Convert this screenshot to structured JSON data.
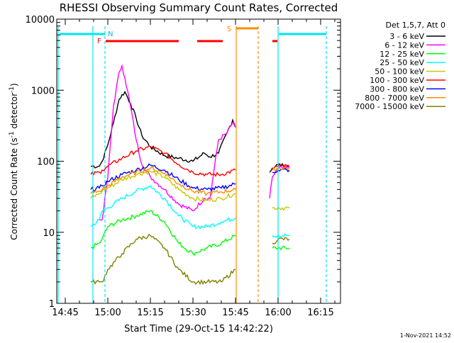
{
  "footer": {
    "timestamp": "1-Nov-2021 14:52"
  },
  "chart_data": {
    "type": "line",
    "title": "RHESSI Observing Summary Count Rates, Corrected",
    "xlabel": "Start Time (29-Oct-15 14:42:22)",
    "ylabel": "Corrected Count Rate (s⁻¹ detector⁻¹)",
    "ylabel_main": "Corrected Count Rate (s",
    "ylabel_sup1": "-1",
    "ylabel_mid": " detector",
    "ylabel_sup2": "-1",
    "ylabel_end": ")",
    "y_scale": "log",
    "ylim": [
      1,
      10000
    ],
    "y_ticks": [
      1,
      10,
      100,
      1000,
      10000
    ],
    "y_tick_labels": [
      "1",
      "10",
      "100",
      "1000",
      "10000"
    ],
    "xlim": [
      "14:42",
      "16:22"
    ],
    "x_ticks": [
      "14:45",
      "15:00",
      "15:15",
      "15:30",
      "15:45",
      "16:00",
      "16:15"
    ],
    "legend": {
      "header": "Det 1,5,7, Att 0",
      "placement": "right"
    },
    "series": [
      {
        "name": "3 - 6 keV",
        "color": "#000000",
        "x": [
          "14:54",
          "14:57",
          "14:58",
          "15:00",
          "15:02",
          "15:04",
          "15:06",
          "15:08",
          "15:10",
          "15:12",
          "15:15",
          "15:20",
          "15:25",
          "15:30",
          "15:34",
          "15:36",
          "15:39",
          "15:42",
          "15:44",
          "15:45",
          "15:55",
          "15:57",
          "15:58",
          "16:00",
          "16:02",
          "16:04"
        ],
        "y": [
          85,
          85,
          100,
          170,
          350,
          750,
          950,
          650,
          400,
          230,
          160,
          120,
          110,
          100,
          130,
          115,
          130,
          250,
          380,
          300,
          null,
          70,
          80,
          90,
          85,
          85
        ]
      },
      {
        "name": "6 - 12 keV",
        "color": "#ff00ff",
        "x": [
          "14:54",
          "14:57",
          "14:58",
          "15:00",
          "15:02",
          "15:04",
          "15:05",
          "15:06",
          "15:08",
          "15:10",
          "15:12",
          "15:15",
          "15:20",
          "15:25",
          "15:30",
          "15:34",
          "15:36",
          "15:39",
          "15:42",
          "15:44",
          "15:45",
          "15:55",
          "15:57",
          "15:58",
          "16:00",
          "16:02",
          "16:04"
        ],
        "y": [
          null,
          15,
          15,
          60,
          600,
          1800,
          2200,
          1500,
          600,
          200,
          90,
          60,
          40,
          25,
          20,
          30,
          30,
          200,
          250,
          350,
          300,
          null,
          30,
          60,
          80,
          80,
          80
        ]
      },
      {
        "name": "12 - 25 keV",
        "color": "#00ff00",
        "x": [
          "14:54",
          "14:57",
          "14:58",
          "15:00",
          "15:05",
          "15:10",
          "15:15",
          "15:20",
          "15:25",
          "15:30",
          "15:35",
          "15:40",
          "15:45",
          "15:55",
          "15:58",
          "16:00",
          "16:04"
        ],
        "y": [
          6,
          7,
          8,
          12,
          15,
          17,
          20,
          14,
          7,
          5,
          6,
          7,
          9,
          null,
          6,
          6,
          6
        ]
      },
      {
        "name": "25 - 50 keV",
        "color": "#00ffff",
        "x": [
          "14:54",
          "14:57",
          "14:58",
          "15:00",
          "15:05",
          "15:10",
          "15:15",
          "15:20",
          "15:25",
          "15:30",
          "15:35",
          "15:40",
          "15:45",
          "15:55",
          "15:58",
          "16:00",
          "16:04"
        ],
        "y": [
          12,
          15,
          20,
          22,
          30,
          38,
          45,
          30,
          17,
          12,
          12,
          14,
          16,
          null,
          9,
          9,
          9
        ]
      },
      {
        "name": "50 - 100 keV",
        "color": "#c8c800",
        "x": [
          "14:54",
          "14:57",
          "14:58",
          "15:00",
          "15:05",
          "15:10",
          "15:15",
          "15:20",
          "15:25",
          "15:30",
          "15:35",
          "15:40",
          "15:45",
          "15:55",
          "15:58",
          "16:00",
          "16:04"
        ],
        "y": [
          30,
          35,
          38,
          42,
          55,
          65,
          72,
          60,
          40,
          30,
          28,
          30,
          35,
          null,
          22,
          22,
          22
        ]
      },
      {
        "name": "100 - 300 keV",
        "color": "#ff0000",
        "x": [
          "14:54",
          "14:57",
          "14:58",
          "15:00",
          "15:05",
          "15:10",
          "15:15",
          "15:20",
          "15:25",
          "15:30",
          "15:35",
          "15:40",
          "15:45",
          "15:55",
          "15:58",
          "16:00",
          "16:04"
        ],
        "y": [
          65,
          70,
          75,
          85,
          110,
          140,
          160,
          130,
          90,
          70,
          65,
          65,
          75,
          null,
          80,
          85,
          85
        ]
      },
      {
        "name": "300 - 800 keV",
        "color": "#0000ff",
        "x": [
          "14:54",
          "14:57",
          "14:58",
          "15:00",
          "15:05",
          "15:10",
          "15:15",
          "15:20",
          "15:25",
          "15:30",
          "15:35",
          "15:40",
          "15:45",
          "15:55",
          "15:58",
          "16:00",
          "16:04"
        ],
        "y": [
          40,
          42,
          45,
          52,
          65,
          75,
          88,
          75,
          55,
          42,
          40,
          42,
          48,
          null,
          70,
          75,
          75
        ]
      },
      {
        "name": "800 - 7000 keV",
        "color": "#ff8c00",
        "x": [
          "14:54",
          "14:57",
          "14:58",
          "15:00",
          "15:05",
          "15:10",
          "15:15",
          "15:20",
          "15:25",
          "15:30",
          "15:35",
          "15:40",
          "15:45",
          "15:55",
          "15:58",
          "16:00",
          "16:04"
        ],
        "y": [
          35,
          38,
          40,
          45,
          60,
          70,
          80,
          68,
          48,
          38,
          35,
          37,
          40,
          null,
          75,
          80,
          80
        ]
      },
      {
        "name": "7000 - 15000 keV",
        "color": "#808000",
        "x": [
          "14:54",
          "14:57",
          "14:58",
          "15:00",
          "15:05",
          "15:10",
          "15:15",
          "15:20",
          "15:25",
          "15:30",
          "15:35",
          "15:40",
          "15:45",
          "15:55",
          "15:58",
          "16:00",
          "16:04"
        ],
        "y": [
          2,
          2,
          2,
          3,
          5,
          8,
          9,
          6,
          3,
          2,
          2,
          2,
          3,
          null,
          7,
          8,
          8
        ]
      }
    ],
    "annotations": {
      "flag_F": "F",
      "flag_N": "N",
      "flag_S": "S"
    }
  }
}
